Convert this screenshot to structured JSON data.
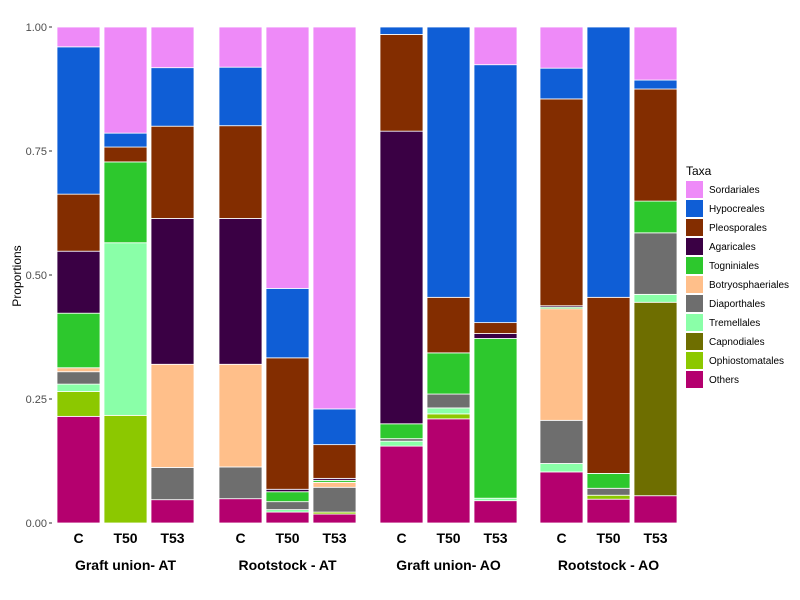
{
  "chart_data": {
    "type": "bar",
    "stacked": true,
    "ylabel": "Proportions",
    "ylim": [
      0,
      1
    ],
    "y_ticks": [
      "0.00",
      "0.25",
      "0.50",
      "0.75",
      "1.00"
    ],
    "legend": {
      "title": "Taxa",
      "position": "right"
    },
    "taxa": [
      {
        "name": "Sordariales",
        "color": "#EE8AF8"
      },
      {
        "name": "Hypocreales",
        "color": "#0F5ED6"
      },
      {
        "name": "Pleosporales",
        "color": "#832D00"
      },
      {
        "name": "Agaricales",
        "color": "#3A0044"
      },
      {
        "name": "Togniniales",
        "color": "#2DC82D"
      },
      {
        "name": "Botryosphaeriales",
        "color": "#FFBF8A"
      },
      {
        "name": "Diaporthales",
        "color": "#6E6E6E"
      },
      {
        "name": "Tremellales",
        "color": "#8AFFA8"
      },
      {
        "name": "Capnodiales",
        "color": "#6E6E00"
      },
      {
        "name": "Ophiostomatales",
        "color": "#8CC800"
      },
      {
        "name": "Others",
        "color": "#B4006E"
      }
    ],
    "facets": [
      {
        "name": "Graft union- AT",
        "bars": [
          {
            "label": "C",
            "values": {
              "Others": 0.215,
              "Ophiostomatales": 0.05,
              "Tremellales": 0.015,
              "Diaporthales": 0.025,
              "Botryosphaeriales": 0.008,
              "Togniniales": 0.11,
              "Agaricales": 0.125,
              "Pleosporales": 0.115,
              "Hypocreales": 0.297,
              "Sordariales": 0.04
            }
          },
          {
            "label": "T50",
            "values": {
              "Ophiostomatales": 0.217,
              "Tremellales": 0.348,
              "Togniniales": 0.163,
              "Pleosporales": 0.03,
              "Hypocreales": 0.028,
              "Sordariales": 0.214
            }
          },
          {
            "label": "T53",
            "values": {
              "Others": 0.047,
              "Diaporthales": 0.065,
              "Botryosphaeriales": 0.208,
              "Agaricales": 0.294,
              "Pleosporales": 0.186,
              "Hypocreales": 0.118,
              "Sordariales": 0.082
            }
          }
        ]
      },
      {
        "name": "Rootstock - AT",
        "bars": [
          {
            "label": "C",
            "values": {
              "Others": 0.049,
              "Diaporthales": 0.064,
              "Botryosphaeriales": 0.207,
              "Agaricales": 0.294,
              "Pleosporales": 0.187,
              "Hypocreales": 0.118,
              "Sordariales": 0.081
            }
          },
          {
            "label": "T50",
            "values": {
              "Others": 0.022,
              "Tremellales": 0.005,
              "Diaporthales": 0.016,
              "Togniniales": 0.02,
              "Agaricales": 0.005,
              "Pleosporales": 0.265,
              "Hypocreales": 0.14,
              "Sordariales": 0.527
            }
          },
          {
            "label": "T53",
            "values": {
              "Others": 0.018,
              "Ophiostomatales": 0.004,
              "Diaporthales": 0.05,
              "Botryosphaeriales": 0.01,
              "Togniniales": 0.004,
              "Agaricales": 0.004,
              "Pleosporales": 0.068,
              "Hypocreales": 0.072,
              "Sordariales": 0.77
            }
          }
        ]
      },
      {
        "name": "Graft union- AO",
        "bars": [
          {
            "label": "C",
            "values": {
              "Others": 0.155,
              "Tremellales": 0.01,
              "Diaporthales": 0.005,
              "Togniniales": 0.03,
              "Agaricales": 0.59,
              "Pleosporales": 0.195,
              "Hypocreales": 0.015
            }
          },
          {
            "label": "T50",
            "values": {
              "Others": 0.21,
              "Ophiostomatales": 0.01,
              "Tremellales": 0.012,
              "Diaporthales": 0.028,
              "Togniniales": 0.083,
              "Pleosporales": 0.112,
              "Hypocreales": 0.545
            }
          },
          {
            "label": "T53",
            "values": {
              "Others": 0.045,
              "Tremellales": 0.005,
              "Togniniales": 0.322,
              "Agaricales": 0.01,
              "Pleosporales": 0.022,
              "Hypocreales": 0.52,
              "Sordariales": 0.076
            }
          }
        ]
      },
      {
        "name": "Rootstock - AO",
        "bars": [
          {
            "label": "C",
            "values": {
              "Others": 0.103,
              "Tremellales": 0.017,
              "Diaporthales": 0.087,
              "Botryosphaeriales": 0.225,
              "Togniniales": 0.003,
              "Agaricales": 0.003,
              "Pleosporales": 0.417,
              "Hypocreales": 0.062,
              "Sordariales": 0.083
            }
          },
          {
            "label": "T50",
            "values": {
              "Others": 0.048,
              "Ophiostomatales": 0.008,
              "Diaporthales": 0.014,
              "Togniniales": 0.03,
              "Pleosporales": 0.355,
              "Hypocreales": 0.545
            }
          },
          {
            "label": "T53",
            "values": {
              "Others": 0.055,
              "Capnodiales": 0.39,
              "Tremellales": 0.016,
              "Diaporthales": 0.124,
              "Togniniales": 0.064,
              "Pleosporales": 0.226,
              "Hypocreales": 0.018,
              "Sordariales": 0.107
            }
          }
        ]
      }
    ]
  }
}
